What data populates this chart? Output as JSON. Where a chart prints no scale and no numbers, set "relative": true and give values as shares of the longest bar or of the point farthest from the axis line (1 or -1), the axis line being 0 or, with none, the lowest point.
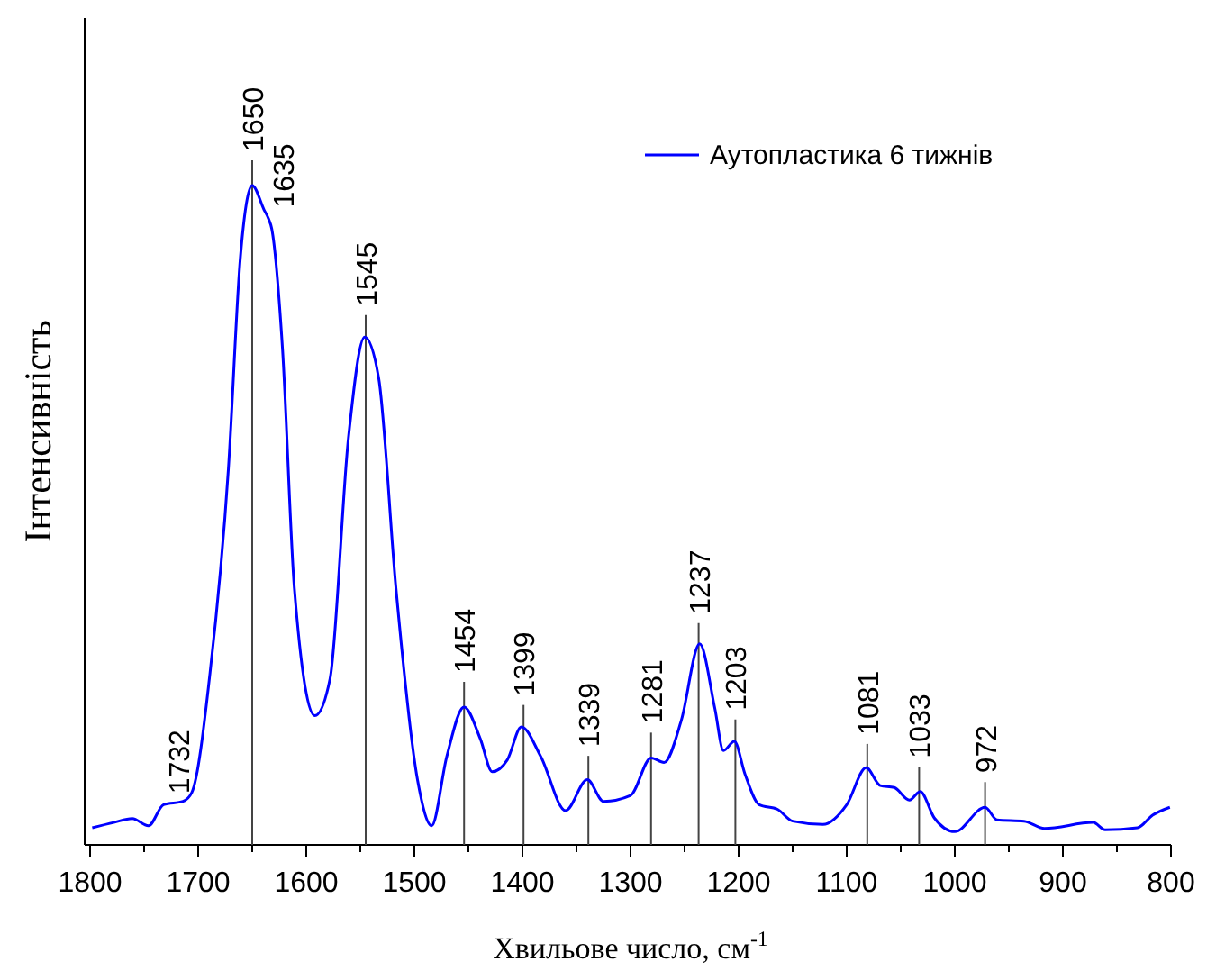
{
  "chart_data": {
    "type": "line",
    "relative": true,
    "xlabel": "Хвильове число, см$^{-1}$",
    "ylabel": "Інтенсивність",
    "legend": "top right",
    "xlim": [
      1800,
      800
    ],
    "xticks": [
      1800,
      {
        "value": 1750,
        "label": null
      },
      1700,
      {
        "value": 1650,
        "label": null
      },
      1600,
      {
        "value": 1550,
        "label": null
      },
      1500,
      {
        "value": 1450,
        "label": null
      },
      1400,
      {
        "value": 1350,
        "label": null
      },
      1300,
      {
        "value": 1250,
        "label": null
      },
      1200,
      {
        "value": 1150,
        "label": null
      },
      1100,
      {
        "value": 1050,
        "label": null
      },
      1000,
      {
        "value": 950,
        "label": null
      },
      900,
      {
        "value": 850,
        "label": null
      },
      800
    ],
    "series": [
      {
        "name": "Аутопластика 6 тижнів",
        "color": "#0000ff",
        "x": [
          1798,
          1778,
          1761,
          1746,
          1732,
          1714,
          1706,
          1689,
          1672,
          1661,
          1650,
          1639,
          1635,
          1632,
          1622,
          1611,
          1592,
          1578,
          1561,
          1546,
          1533,
          1517,
          1497,
          1484,
          1470,
          1454,
          1439,
          1428,
          1414,
          1401,
          1383,
          1360,
          1340,
          1325,
          1300,
          1281,
          1269,
          1253,
          1236,
          1222,
          1214,
          1204,
          1194,
          1181,
          1164,
          1150,
          1122,
          1100,
          1082,
          1069,
          1056,
          1042,
          1032,
          1019,
          1000,
          972,
          961,
          936,
          917,
          872,
          861,
          831,
          817,
          801
        ],
        "values": [
          0.026,
          0.034,
          0.04,
          0.029,
          0.061,
          0.066,
          0.079,
          0.261,
          0.571,
          0.89,
          1.0,
          0.963,
          0.95,
          0.935,
          0.753,
          0.389,
          0.196,
          0.252,
          0.617,
          0.77,
          0.708,
          0.389,
          0.098,
          0.029,
          0.134,
          0.209,
          0.161,
          0.111,
          0.129,
          0.179,
          0.134,
          0.052,
          0.099,
          0.066,
          0.075,
          0.132,
          0.125,
          0.189,
          0.305,
          0.207,
          0.143,
          0.157,
          0.107,
          0.061,
          0.054,
          0.036,
          0.031,
          0.061,
          0.117,
          0.09,
          0.087,
          0.068,
          0.081,
          0.041,
          0.02,
          0.057,
          0.038,
          0.036,
          0.025,
          0.034,
          0.023,
          0.026,
          0.045,
          0.057
        ]
      }
    ],
    "annotations": [
      {
        "text": "1732",
        "x": 1732,
        "y": 0.061
      },
      {
        "text": "1635",
        "x": 1635,
        "y": 0.95
      }
    ],
    "ref_lines": [
      {
        "axis": "x",
        "value": 1650,
        "label": "1650"
      },
      {
        "axis": "x",
        "value": 1545,
        "label": "1545"
      },
      {
        "axis": "x",
        "value": 1454,
        "label": "1454"
      },
      {
        "axis": "x",
        "value": 1399,
        "label": "1399"
      },
      {
        "axis": "x",
        "value": 1339,
        "label": "1339"
      },
      {
        "axis": "x",
        "value": 1281,
        "label": "1281"
      },
      {
        "axis": "x",
        "value": 1237,
        "label": "1237"
      },
      {
        "axis": "x",
        "value": 1203,
        "label": "1203"
      },
      {
        "axis": "x",
        "value": 1081,
        "label": "1081"
      },
      {
        "axis": "x",
        "value": 1033,
        "label": "1033"
      },
      {
        "axis": "x",
        "value": 972,
        "label": "972"
      }
    ]
  }
}
